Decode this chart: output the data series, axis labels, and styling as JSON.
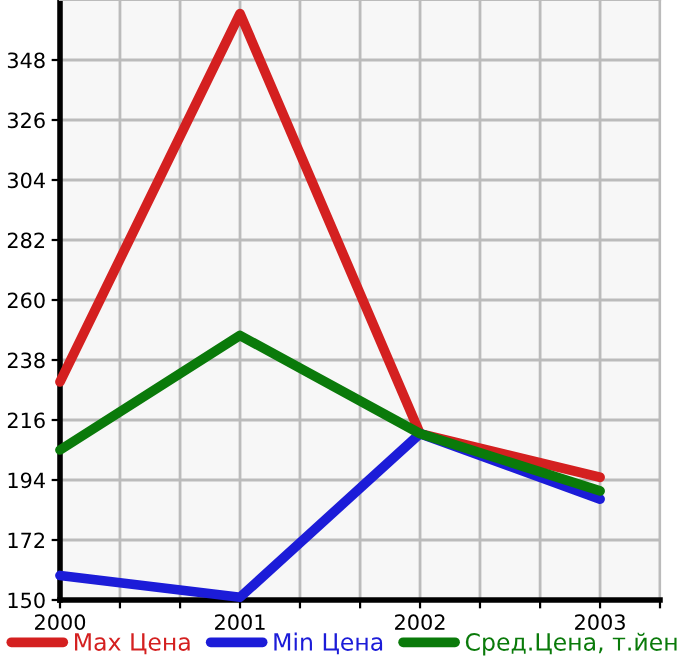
{
  "chart_data": {
    "type": "line",
    "x": [
      2000,
      2001,
      2002,
      2003
    ],
    "series": [
      {
        "name": "Max Цена",
        "color": "#d42020",
        "values": [
          230,
          365,
          211,
          195
        ]
      },
      {
        "name": "Min Цена",
        "color": "#1c1cd8",
        "values": [
          159,
          151,
          211,
          187
        ]
      },
      {
        "name": "Сред.Цена, т.йен",
        "color": "#0a7a0a",
        "values": [
          205,
          247,
          211,
          190
        ]
      }
    ],
    "xlim": [
      2000,
      2003.333
    ],
    "xticks": [
      2000,
      {
        "value": 2000.333,
        "label": null
      },
      {
        "value": 2000.667,
        "label": null
      },
      2001,
      {
        "value": 2001.333,
        "label": null
      },
      {
        "value": 2001.667,
        "label": null
      },
      2002,
      {
        "value": 2002.333,
        "label": null
      },
      {
        "value": 2002.667,
        "label": null
      },
      2003,
      {
        "value": 2003.333,
        "label": null
      }
    ],
    "ylim": [
      150,
      370
    ],
    "yticks": [
      150,
      172,
      194,
      216,
      238,
      260,
      282,
      304,
      326,
      348
    ],
    "grid": true,
    "legend": "bottom",
    "marker": "none",
    "line_style": "solid"
  }
}
